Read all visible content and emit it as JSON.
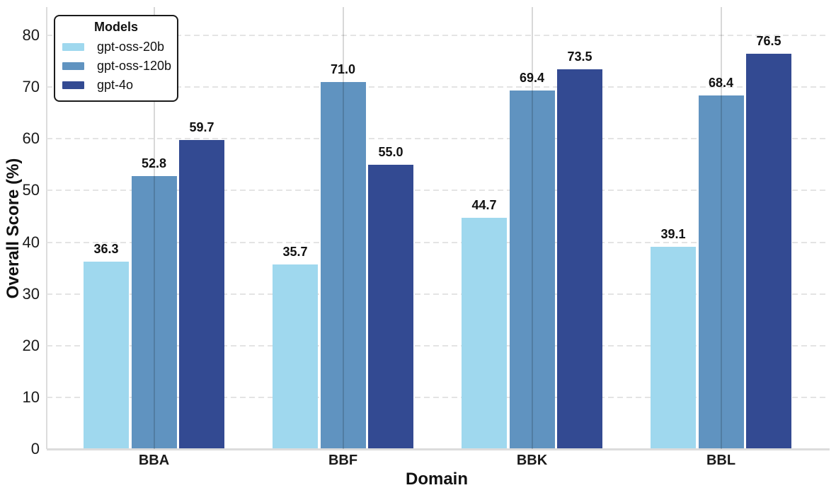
{
  "chart_data": {
    "type": "bar",
    "title": "",
    "xlabel": "Domain",
    "ylabel": "Overall Score (%)",
    "categories": [
      "BBA",
      "BBF",
      "BBK",
      "BBL"
    ],
    "series": [
      {
        "name": "gpt-oss-20b",
        "color": "#9FD8EE",
        "values": [
          36.3,
          35.7,
          44.7,
          39.1
        ]
      },
      {
        "name": "gpt-oss-120b",
        "color": "#6093C0",
        "values": [
          52.8,
          71.0,
          69.4,
          68.4
        ]
      },
      {
        "name": "gpt-4o",
        "color": "#334A92",
        "values": [
          59.7,
          55.0,
          73.5,
          76.5
        ]
      }
    ],
    "ylim": [
      0,
      85.5
    ],
    "yticks": [
      0,
      10,
      20,
      30,
      40,
      50,
      60,
      70,
      80
    ],
    "legend": {
      "title": "Models",
      "position": "upper-left"
    },
    "grid": {
      "horizontal": "dashed",
      "vertical": "solid"
    },
    "value_labels": "one-decimal"
  },
  "colors": {
    "background": "#ffffff",
    "grid_horizontal": "#e4e4e4",
    "grid_vertical": "#d8d8d8",
    "spine": "#dcdcdc",
    "text": "#111111"
  }
}
